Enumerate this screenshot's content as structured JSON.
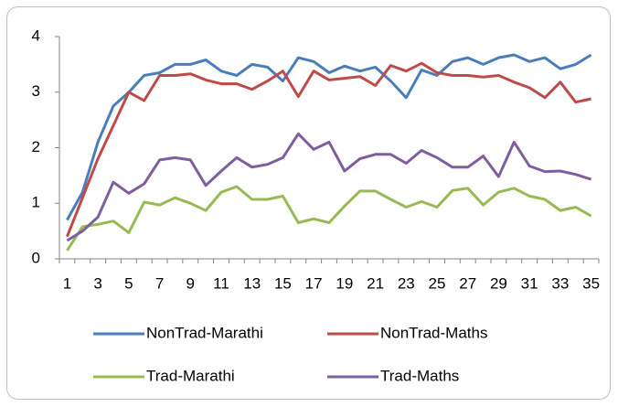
{
  "chart_data": {
    "type": "line",
    "categories": [
      "1",
      null,
      "3",
      null,
      "5",
      null,
      "7",
      null,
      "9",
      null,
      "11",
      null,
      "13",
      null,
      "15",
      null,
      "17",
      null,
      "19",
      null,
      "21",
      null,
      "23",
      null,
      "25",
      null,
      "27",
      null,
      "29",
      null,
      "31",
      null,
      "33",
      null,
      "35"
    ],
    "series": [
      {
        "name": "NonTrad-Marathi",
        "color": "#4a7ebb",
        "values": [
          0.7,
          1.2,
          2.1,
          2.75,
          3.0,
          3.3,
          3.35,
          3.5,
          3.5,
          3.58,
          3.38,
          3.3,
          3.5,
          3.45,
          3.2,
          3.62,
          3.55,
          3.35,
          3.47,
          3.38,
          3.45,
          3.2,
          2.9,
          3.4,
          3.3,
          3.55,
          3.62,
          3.5,
          3.62,
          3.67,
          3.55,
          3.62,
          3.42,
          3.5,
          3.67
        ]
      },
      {
        "name": "NonTrad-Maths",
        "color": "#be4b48",
        "values": [
          0.4,
          1.1,
          1.8,
          2.4,
          3.0,
          2.85,
          3.3,
          3.3,
          3.33,
          3.22,
          3.15,
          3.15,
          3.05,
          3.2,
          3.38,
          2.92,
          3.38,
          3.22,
          3.25,
          3.28,
          3.12,
          3.48,
          3.38,
          3.52,
          3.35,
          3.3,
          3.3,
          3.27,
          3.3,
          3.18,
          3.08,
          2.9,
          3.18,
          2.82,
          2.88
        ]
      },
      {
        "name": "Trad-Marathi",
        "color": "#98b954",
        "values": [
          0.15,
          0.58,
          0.62,
          0.68,
          0.47,
          1.02,
          0.97,
          1.1,
          1.0,
          0.87,
          1.2,
          1.3,
          1.07,
          1.07,
          1.13,
          0.65,
          0.72,
          0.65,
          0.95,
          1.22,
          1.22,
          1.07,
          0.93,
          1.03,
          0.93,
          1.23,
          1.27,
          0.97,
          1.2,
          1.27,
          1.13,
          1.07,
          0.87,
          0.93,
          0.77
        ]
      },
      {
        "name": "Trad-Maths",
        "color": "#7d5fa0",
        "values": [
          0.33,
          0.5,
          0.75,
          1.38,
          1.18,
          1.35,
          1.78,
          1.82,
          1.78,
          1.32,
          1.58,
          1.82,
          1.65,
          1.7,
          1.82,
          2.25,
          1.97,
          2.1,
          1.58,
          1.8,
          1.88,
          1.88,
          1.72,
          1.95,
          1.82,
          1.65,
          1.65,
          1.85,
          1.48,
          2.1,
          1.67,
          1.57,
          1.58,
          1.52,
          1.43
        ]
      }
    ],
    "ylim": [
      0,
      4
    ],
    "yticks": [
      0,
      1,
      2,
      3,
      4
    ],
    "grid": false
  }
}
